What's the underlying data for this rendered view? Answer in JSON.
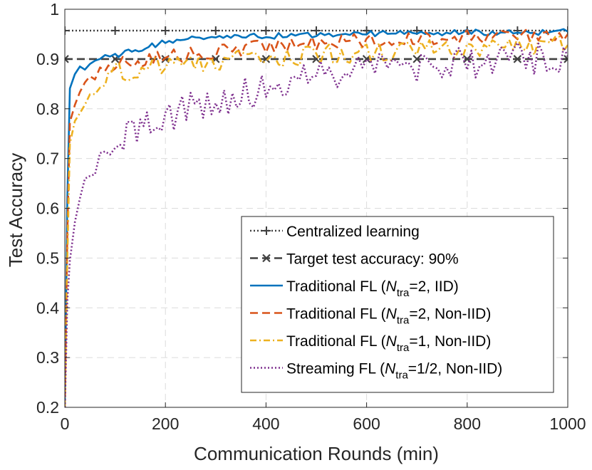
{
  "chart_data": {
    "type": "line",
    "title": "",
    "xlabel": "Communication Rounds (min)",
    "ylabel": "Test Accuracy",
    "xlim": [
      0,
      1000
    ],
    "ylim": [
      0.2,
      1
    ],
    "grid": true,
    "legend_position": "bottom-right",
    "x_ticks": [
      0,
      200,
      400,
      600,
      800,
      1000
    ],
    "y_ticks": [
      0.2,
      0.3,
      0.4,
      0.5,
      0.6,
      0.7,
      0.8,
      0.9,
      1
    ],
    "x_tick_labels": [
      "0",
      "200",
      "400",
      "600",
      "800",
      "1000"
    ],
    "y_tick_labels": [
      "0.2",
      "0.3",
      "0.4",
      "0.5",
      "0.6",
      "0.7",
      "0.8",
      "0.9",
      "1"
    ],
    "series": [
      {
        "name": "Centralized learning",
        "legend_parts": [
          "Centralized learning"
        ],
        "color": "#404040",
        "style": "dotted",
        "marker": "plus",
        "x": [
          0,
          1000
        ],
        "y": [
          0.957,
          0.957
        ],
        "marker_x": [
          0,
          100,
          200,
          300,
          400,
          500,
          600,
          700,
          800,
          900,
          1000
        ]
      },
      {
        "name": "Target test accuracy: 90%",
        "legend_parts": [
          "Target test accuracy: 90%"
        ],
        "color": "#404040",
        "style": "dashed",
        "marker": "x",
        "x": [
          0,
          1000
        ],
        "y": [
          0.9,
          0.9
        ],
        "marker_x": [
          0,
          100,
          200,
          300,
          400,
          500,
          600,
          700,
          800,
          900,
          1000
        ]
      },
      {
        "name": "Traditional FL (Ntra=2, IID)",
        "legend_parts": [
          "Traditional FL (",
          "N",
          "tra",
          "=2, IID)"
        ],
        "color": "#0072BD",
        "style": "solid",
        "marker": "none",
        "x": [
          0,
          5,
          10,
          20,
          30,
          40,
          50,
          60,
          70,
          80,
          90,
          100,
          120,
          140,
          160,
          180,
          200,
          230,
          260,
          300,
          330,
          360,
          400,
          450,
          500,
          550,
          600,
          650,
          700,
          750,
          800,
          850,
          900,
          950,
          1000
        ],
        "y": [
          0.2,
          0.62,
          0.84,
          0.87,
          0.885,
          0.88,
          0.89,
          0.895,
          0.9,
          0.905,
          0.9,
          0.905,
          0.912,
          0.918,
          0.922,
          0.928,
          0.935,
          0.938,
          0.94,
          0.942,
          0.944,
          0.945,
          0.946,
          0.948,
          0.949,
          0.95,
          0.951,
          0.952,
          0.952,
          0.953,
          0.954,
          0.953,
          0.955,
          0.954,
          0.955
        ]
      },
      {
        "name": "Traditional FL (Ntra=2, Non-IID)",
        "legend_parts": [
          "Traditional FL (",
          "N",
          "tra",
          "=2, Non-IID)"
        ],
        "color": "#D95319",
        "style": "dashed",
        "marker": "none",
        "x": [
          0,
          5,
          10,
          20,
          30,
          40,
          50,
          60,
          70,
          80,
          100,
          130,
          160,
          200,
          250,
          300,
          350,
          400,
          450,
          500,
          550,
          600,
          650,
          700,
          750,
          800,
          850,
          900,
          950,
          1000
        ],
        "y": [
          0.2,
          0.55,
          0.77,
          0.81,
          0.83,
          0.85,
          0.865,
          0.87,
          0.875,
          0.88,
          0.888,
          0.895,
          0.9,
          0.905,
          0.91,
          0.915,
          0.92,
          0.925,
          0.93,
          0.932,
          0.935,
          0.938,
          0.94,
          0.941,
          0.943,
          0.945,
          0.946,
          0.947,
          0.948,
          0.95
        ]
      },
      {
        "name": "Traditional FL (Ntra=1, Non-IID)",
        "legend_parts": [
          "Traditional FL (",
          "N",
          "tra",
          "=1, Non-IID)"
        ],
        "color": "#EDB120",
        "style": "dashdot",
        "marker": "none",
        "x": [
          0,
          5,
          10,
          20,
          30,
          40,
          50,
          60,
          70,
          80,
          100,
          130,
          160,
          200,
          250,
          300,
          350,
          400,
          450,
          500,
          550,
          600,
          650,
          700,
          750,
          800,
          850,
          900,
          950,
          1000
        ],
        "y": [
          0.2,
          0.5,
          0.73,
          0.77,
          0.79,
          0.81,
          0.83,
          0.845,
          0.855,
          0.865,
          0.872,
          0.878,
          0.884,
          0.888,
          0.892,
          0.895,
          0.898,
          0.902,
          0.905,
          0.908,
          0.91,
          0.912,
          0.915,
          0.917,
          0.92,
          0.922,
          0.923,
          0.925,
          0.926,
          0.928
        ]
      },
      {
        "name": "Streaming FL (Ntra=1/2, Non-IID)",
        "legend_parts": [
          "Streaming FL (",
          "N",
          "tra",
          "=1/2, Non-IID)"
        ],
        "color": "#7E2F8E",
        "style": "dotted",
        "marker": "none",
        "x": [
          0,
          5,
          10,
          20,
          30,
          40,
          50,
          60,
          70,
          80,
          90,
          100,
          110,
          130,
          150,
          170,
          200,
          250,
          300,
          350,
          400,
          450,
          500,
          550,
          600,
          650,
          700,
          750,
          800,
          850,
          900,
          950,
          1000
        ],
        "y": [
          0.2,
          0.42,
          0.5,
          0.58,
          0.63,
          0.65,
          0.665,
          0.68,
          0.69,
          0.7,
          0.71,
          0.72,
          0.73,
          0.745,
          0.76,
          0.772,
          0.785,
          0.8,
          0.815,
          0.83,
          0.842,
          0.852,
          0.862,
          0.87,
          0.876,
          0.882,
          0.887,
          0.89,
          0.894,
          0.897,
          0.9,
          0.903,
          0.905
        ]
      }
    ]
  }
}
